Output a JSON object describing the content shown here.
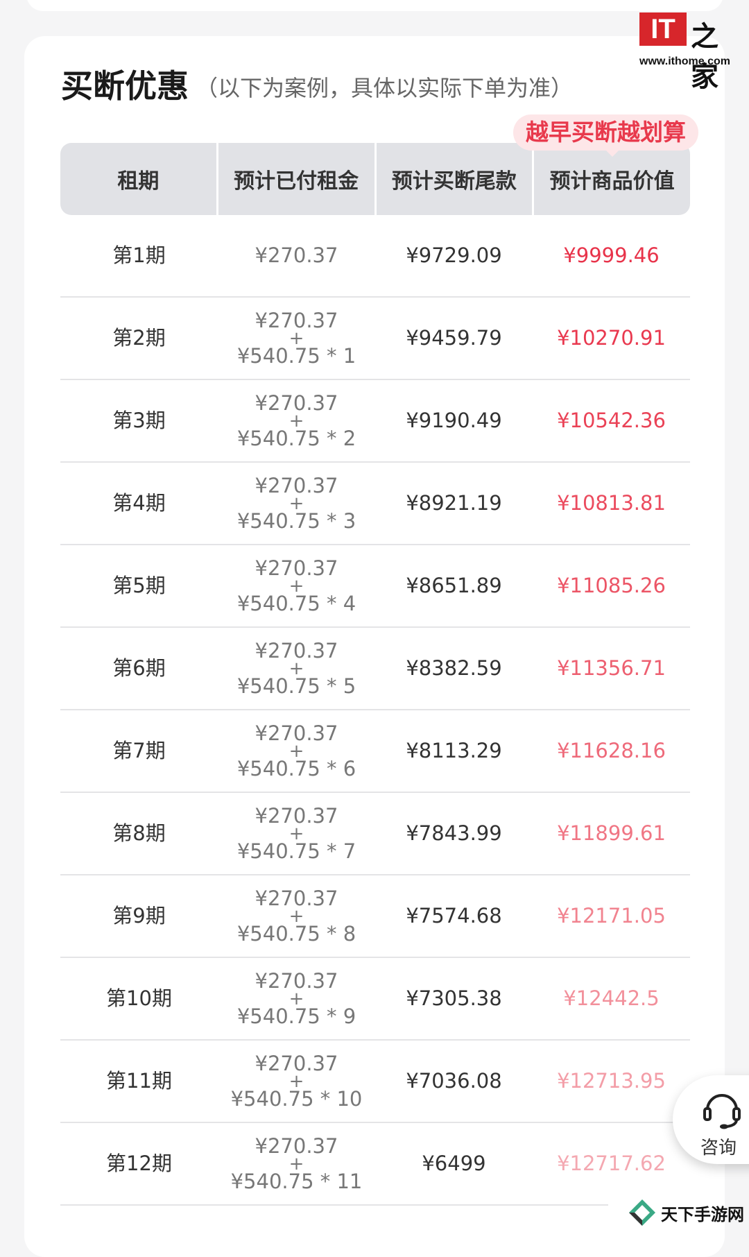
{
  "watermark_logo": {
    "brand": "IT之家",
    "url": "www.ithome.com"
  },
  "section": {
    "title": "买断优惠",
    "subtitle": "（以下为案例，具体以实际下单为准）",
    "badge": "越早买断越划算"
  },
  "table": {
    "headers": [
      "租期",
      "预计已付租金",
      "预计买断尾款",
      "预计商品价值"
    ],
    "rows": [
      {
        "period": "第1期",
        "paid_line1": "¥270.37",
        "paid_plus": "",
        "paid_line2": "",
        "buyout": "¥9729.09",
        "value": "¥9999.46",
        "value_color": "#e8334a"
      },
      {
        "period": "第2期",
        "paid_line1": "¥270.37",
        "paid_plus": "+",
        "paid_line2": "¥540.75 * 1",
        "buyout": "¥9459.79",
        "value": "¥10270.91",
        "value_color": "#e9394f"
      },
      {
        "period": "第3期",
        "paid_line1": "¥270.37",
        "paid_plus": "+",
        "paid_line2": "¥540.75 * 2",
        "buyout": "¥9190.49",
        "value": "¥10542.36",
        "value_color": "#ea4256"
      },
      {
        "period": "第4期",
        "paid_line1": "¥270.37",
        "paid_plus": "+",
        "paid_line2": "¥540.75 * 3",
        "buyout": "¥8921.19",
        "value": "¥10813.81",
        "value_color": "#eb4b5e"
      },
      {
        "period": "第5期",
        "paid_line1": "¥270.37",
        "paid_plus": "+",
        "paid_line2": "¥540.75 * 4",
        "buyout": "¥8651.89",
        "value": "¥11085.26",
        "value_color": "#ec5566"
      },
      {
        "period": "第6期",
        "paid_line1": "¥270.37",
        "paid_plus": "+",
        "paid_line2": "¥540.75 * 5",
        "buyout": "¥8382.59",
        "value": "¥11356.71",
        "value_color": "#ed5f70"
      },
      {
        "period": "第7期",
        "paid_line1": "¥270.37",
        "paid_plus": "+",
        "paid_line2": "¥540.75 * 6",
        "buyout": "¥8113.29",
        "value": "¥11628.16",
        "value_color": "#ee6a7a"
      },
      {
        "period": "第8期",
        "paid_line1": "¥270.37",
        "paid_plus": "+",
        "paid_line2": "¥540.75 * 7",
        "buyout": "¥7843.99",
        "value": "¥11899.61",
        "value_color": "#f07684"
      },
      {
        "period": "第9期",
        "paid_line1": "¥270.37",
        "paid_plus": "+",
        "paid_line2": "¥540.75 * 8",
        "buyout": "¥7574.68",
        "value": "¥12171.05",
        "value_color": "#f1838f"
      },
      {
        "period": "第10期",
        "paid_line1": "¥270.37",
        "paid_plus": "+",
        "paid_line2": "¥540.75 * 9",
        "buyout": "¥7305.38",
        "value": "¥12442.5",
        "value_color": "#f2909b"
      },
      {
        "period": "第11期",
        "paid_line1": "¥270.37",
        "paid_plus": "+",
        "paid_line2": "¥540.75 * 10",
        "buyout": "¥7036.08",
        "value": "¥12713.95",
        "value_color": "#f39da7"
      },
      {
        "period": "第12期",
        "paid_line1": "¥270.37",
        "paid_plus": "+",
        "paid_line2": "¥540.75 * 11",
        "buyout": "¥6499",
        "value": "¥12717.62",
        "value_color": "#f4a8b1"
      }
    ]
  },
  "consult_button": {
    "label": "咨询",
    "icon": "headset-icon"
  },
  "bottom_watermark": {
    "text": "天下手游网",
    "icon": "diamond-logo-icon"
  }
}
